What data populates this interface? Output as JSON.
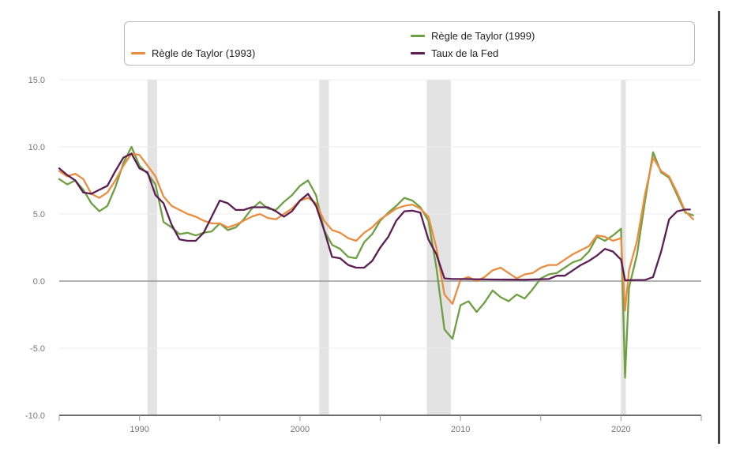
{
  "chart_data": {
    "type": "line",
    "title": "",
    "xlabel": "",
    "ylabel": "",
    "xlim": [
      1985,
      2025
    ],
    "ylim": [
      -10,
      15
    ],
    "y_ticks": [
      "15.0",
      "10.0",
      "5.0",
      "0.0",
      "-5.0",
      "-10.0"
    ],
    "x_ticks": [
      {
        "year": 1990,
        "label": "1990"
      },
      {
        "year": 2000,
        "label": "2000"
      },
      {
        "year": 2010,
        "label": "2010"
      },
      {
        "year": 2020,
        "label": "2020"
      }
    ],
    "recessions": [
      [
        1990.5,
        1991.1
      ],
      [
        2001.2,
        2001.8
      ],
      [
        2007.9,
        2009.4
      ],
      [
        2020.0,
        2020.3
      ]
    ],
    "legend": {
      "placement": "top"
    },
    "series": [
      {
        "name": "Règle de Taylor (1993)",
        "color": "#ea8d40",
        "points": [
          [
            1985,
            8.2
          ],
          [
            1985.5,
            7.8
          ],
          [
            1986,
            8.0
          ],
          [
            1986.5,
            7.6
          ],
          [
            1987,
            6.5
          ],
          [
            1987.5,
            6.2
          ],
          [
            1988,
            6.6
          ],
          [
            1988.5,
            7.5
          ],
          [
            1989,
            8.6
          ],
          [
            1989.5,
            9.5
          ],
          [
            1990,
            9.4
          ],
          [
            1990.5,
            8.6
          ],
          [
            1991,
            7.8
          ],
          [
            1991.5,
            6.3
          ],
          [
            1992,
            5.6
          ],
          [
            1992.5,
            5.3
          ],
          [
            1993,
            5.0
          ],
          [
            1993.5,
            4.8
          ],
          [
            1994,
            4.5
          ],
          [
            1994.5,
            4.3
          ],
          [
            1995,
            4.3
          ],
          [
            1995.5,
            4.0
          ],
          [
            1996,
            4.2
          ],
          [
            1996.5,
            4.5
          ],
          [
            1997,
            4.8
          ],
          [
            1997.5,
            5.0
          ],
          [
            1998,
            4.7
          ],
          [
            1998.5,
            4.6
          ],
          [
            1999,
            5.0
          ],
          [
            1999.5,
            5.4
          ],
          [
            2000,
            6.0
          ],
          [
            2000.5,
            6.2
          ],
          [
            2001,
            5.8
          ],
          [
            2001.5,
            4.5
          ],
          [
            2002,
            3.8
          ],
          [
            2002.5,
            3.6
          ],
          [
            2003,
            3.2
          ],
          [
            2003.5,
            3.0
          ],
          [
            2004,
            3.6
          ],
          [
            2004.5,
            4.0
          ],
          [
            2005,
            4.6
          ],
          [
            2005.5,
            5.0
          ],
          [
            2006,
            5.4
          ],
          [
            2006.5,
            5.6
          ],
          [
            2007,
            5.7
          ],
          [
            2007.5,
            5.4
          ],
          [
            2008,
            4.8
          ],
          [
            2008.5,
            2.5
          ],
          [
            2009,
            -1.0
          ],
          [
            2009.5,
            -1.7
          ],
          [
            2010,
            0.1
          ],
          [
            2010.5,
            0.3
          ],
          [
            2011,
            0.0
          ],
          [
            2011.5,
            0.3
          ],
          [
            2012,
            0.8
          ],
          [
            2012.5,
            1.0
          ],
          [
            2013,
            0.6
          ],
          [
            2013.5,
            0.2
          ],
          [
            2014,
            0.5
          ],
          [
            2014.5,
            0.6
          ],
          [
            2015,
            1.0
          ],
          [
            2015.5,
            1.2
          ],
          [
            2016,
            1.2
          ],
          [
            2016.5,
            1.6
          ],
          [
            2017,
            2.0
          ],
          [
            2017.5,
            2.3
          ],
          [
            2018,
            2.6
          ],
          [
            2018.5,
            3.4
          ],
          [
            2019,
            3.3
          ],
          [
            2019.5,
            3.0
          ],
          [
            2020,
            3.2
          ],
          [
            2020.25,
            -2.2
          ],
          [
            2020.5,
            0.8
          ],
          [
            2021,
            3.0
          ],
          [
            2021.5,
            6.5
          ],
          [
            2022,
            9.2
          ],
          [
            2022.5,
            8.2
          ],
          [
            2023,
            7.8
          ],
          [
            2023.5,
            6.6
          ],
          [
            2024,
            5.2
          ],
          [
            2024.5,
            4.6
          ]
        ]
      },
      {
        "name": "Règle de Taylor (1999)",
        "color": "#6e9f42",
        "points": [
          [
            1985,
            7.6
          ],
          [
            1985.5,
            7.2
          ],
          [
            1986,
            7.5
          ],
          [
            1986.5,
            6.8
          ],
          [
            1987,
            5.8
          ],
          [
            1987.5,
            5.2
          ],
          [
            1988,
            5.6
          ],
          [
            1988.5,
            7.0
          ],
          [
            1989,
            8.8
          ],
          [
            1989.5,
            10.0
          ],
          [
            1990,
            8.6
          ],
          [
            1990.5,
            8.0
          ],
          [
            1991,
            7.2
          ],
          [
            1991.5,
            4.4
          ],
          [
            1992,
            4.0
          ],
          [
            1992.5,
            3.5
          ],
          [
            1993,
            3.6
          ],
          [
            1993.5,
            3.4
          ],
          [
            1994,
            3.6
          ],
          [
            1994.5,
            3.7
          ],
          [
            1995,
            4.3
          ],
          [
            1995.5,
            3.8
          ],
          [
            1996,
            4.0
          ],
          [
            1996.5,
            4.6
          ],
          [
            1997,
            5.4
          ],
          [
            1997.5,
            5.9
          ],
          [
            1998,
            5.4
          ],
          [
            1998.5,
            5.3
          ],
          [
            1999,
            5.9
          ],
          [
            1999.5,
            6.4
          ],
          [
            2000,
            7.1
          ],
          [
            2000.5,
            7.5
          ],
          [
            2001,
            6.4
          ],
          [
            2001.5,
            3.8
          ],
          [
            2002,
            2.7
          ],
          [
            2002.5,
            2.4
          ],
          [
            2003,
            1.8
          ],
          [
            2003.5,
            1.7
          ],
          [
            2004,
            2.9
          ],
          [
            2004.5,
            3.5
          ],
          [
            2005,
            4.5
          ],
          [
            2005.5,
            5.1
          ],
          [
            2006,
            5.6
          ],
          [
            2006.5,
            6.2
          ],
          [
            2007,
            6.0
          ],
          [
            2007.5,
            5.5
          ],
          [
            2008,
            4.5
          ],
          [
            2008.5,
            1.0
          ],
          [
            2009,
            -3.6
          ],
          [
            2009.5,
            -4.3
          ],
          [
            2010,
            -1.8
          ],
          [
            2010.5,
            -1.5
          ],
          [
            2011,
            -2.3
          ],
          [
            2011.5,
            -1.6
          ],
          [
            2012,
            -0.7
          ],
          [
            2012.5,
            -1.2
          ],
          [
            2013,
            -1.5
          ],
          [
            2013.5,
            -1.0
          ],
          [
            2014,
            -1.3
          ],
          [
            2014.5,
            -0.6
          ],
          [
            2015,
            0.2
          ],
          [
            2015.5,
            0.5
          ],
          [
            2016,
            0.6
          ],
          [
            2016.5,
            1.0
          ],
          [
            2017,
            1.4
          ],
          [
            2017.5,
            1.6
          ],
          [
            2018,
            2.2
          ],
          [
            2018.5,
            3.3
          ],
          [
            2019,
            3.0
          ],
          [
            2019.5,
            3.4
          ],
          [
            2020,
            3.9
          ],
          [
            2020.25,
            -7.2
          ],
          [
            2020.5,
            -0.5
          ],
          [
            2021,
            2.0
          ],
          [
            2021.5,
            6.0
          ],
          [
            2022,
            9.6
          ],
          [
            2022.5,
            8.1
          ],
          [
            2023,
            7.7
          ],
          [
            2023.5,
            6.4
          ],
          [
            2024,
            5.1
          ],
          [
            2024.5,
            4.9
          ]
        ]
      },
      {
        "name": "Taux de la Fed",
        "color": "#5b1e52",
        "points": [
          [
            1985,
            8.4
          ],
          [
            1985.5,
            7.9
          ],
          [
            1986,
            7.5
          ],
          [
            1986.5,
            6.6
          ],
          [
            1987,
            6.5
          ],
          [
            1987.5,
            6.8
          ],
          [
            1988,
            7.1
          ],
          [
            1988.5,
            8.2
          ],
          [
            1989,
            9.2
          ],
          [
            1989.5,
            9.5
          ],
          [
            1990,
            8.4
          ],
          [
            1990.5,
            8.1
          ],
          [
            1991,
            6.4
          ],
          [
            1991.5,
            5.8
          ],
          [
            1992,
            4.2
          ],
          [
            1992.5,
            3.1
          ],
          [
            1993,
            3.0
          ],
          [
            1993.5,
            3.0
          ],
          [
            1994,
            3.6
          ],
          [
            1994.5,
            4.8
          ],
          [
            1995,
            6.0
          ],
          [
            1995.5,
            5.8
          ],
          [
            1996,
            5.3
          ],
          [
            1996.5,
            5.3
          ],
          [
            1997,
            5.5
          ],
          [
            1997.5,
            5.5
          ],
          [
            1998,
            5.5
          ],
          [
            1998.5,
            5.2
          ],
          [
            1999,
            4.8
          ],
          [
            1999.5,
            5.2
          ],
          [
            2000,
            6.0
          ],
          [
            2000.5,
            6.5
          ],
          [
            2001,
            5.6
          ],
          [
            2001.5,
            3.8
          ],
          [
            2002,
            1.8
          ],
          [
            2002.5,
            1.7
          ],
          [
            2003,
            1.2
          ],
          [
            2003.5,
            1.0
          ],
          [
            2004,
            1.0
          ],
          [
            2004.5,
            1.5
          ],
          [
            2005,
            2.5
          ],
          [
            2005.5,
            3.3
          ],
          [
            2006,
            4.5
          ],
          [
            2006.5,
            5.2
          ],
          [
            2007,
            5.25
          ],
          [
            2007.5,
            5.1
          ],
          [
            2008,
            3.1
          ],
          [
            2008.5,
            2.0
          ],
          [
            2009,
            0.2
          ],
          [
            2009.5,
            0.15
          ],
          [
            2010,
            0.15
          ],
          [
            2012,
            0.12
          ],
          [
            2014,
            0.1
          ],
          [
            2015.5,
            0.15
          ],
          [
            2016,
            0.4
          ],
          [
            2016.5,
            0.4
          ],
          [
            2017,
            0.8
          ],
          [
            2017.5,
            1.2
          ],
          [
            2018,
            1.5
          ],
          [
            2018.5,
            1.9
          ],
          [
            2019,
            2.4
          ],
          [
            2019.5,
            2.2
          ],
          [
            2020,
            1.6
          ],
          [
            2020.25,
            0.06
          ],
          [
            2021,
            0.08
          ],
          [
            2021.5,
            0.08
          ],
          [
            2022,
            0.3
          ],
          [
            2022.5,
            2.2
          ],
          [
            2023,
            4.6
          ],
          [
            2023.5,
            5.2
          ],
          [
            2024,
            5.33
          ],
          [
            2024.3,
            5.33
          ]
        ]
      }
    ]
  }
}
